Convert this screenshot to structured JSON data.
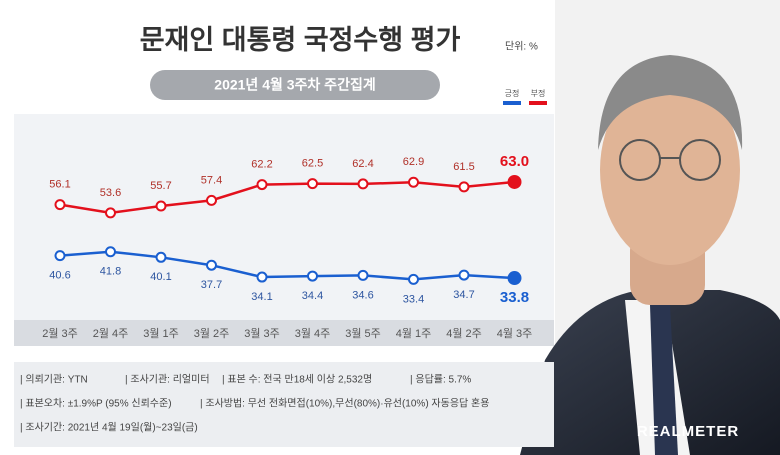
{
  "chart_data": {
    "type": "line",
    "title": "문재인 대통령 국정수행 평가",
    "unit": "단위: %",
    "subtitle": "2021년 4월 3주차 주간집계",
    "categories": [
      "2월 3주",
      "2월 4주",
      "3월 1주",
      "3월 2주",
      "3월 3주",
      "3월 4주",
      "3월 5주",
      "4월 1주",
      "4월 2주",
      "4월 3주"
    ],
    "series": [
      {
        "name": "긍정",
        "color": "#1a5fd0",
        "values": [
          40.6,
          41.8,
          40.1,
          37.7,
          34.1,
          34.4,
          34.6,
          33.4,
          34.7,
          33.8
        ],
        "value_labels": [
          "40.6",
          "41.8",
          "40.1",
          "37.7",
          "34.1",
          "34.4",
          "34.6",
          "33.4",
          "34.7",
          "33.8"
        ]
      },
      {
        "name": "부정",
        "color": "#e3101c",
        "values": [
          56.1,
          53.6,
          55.7,
          57.4,
          62.2,
          62.5,
          62.4,
          62.9,
          61.5,
          63.0
        ],
        "value_labels": [
          "56.1",
          "53.6",
          "55.7",
          "57.4",
          "62.2",
          "62.5",
          "62.4",
          "62.9",
          "61.5",
          "63.0"
        ]
      }
    ],
    "ylim": [
      25,
      80
    ],
    "grid": false
  },
  "notes": [
    [
      "| 의뢰기관: YTN",
      "| 조사기관: 리얼미터",
      "| 표본 수: 전국 만18세 이상 2,532명",
      "| 응답률: 5.7%"
    ],
    [
      "| 표본오차: ±1.9%P (95% 신뢰수준)",
      "| 조사방법: 무선 전화면접(10%),무선(80%)·유선(10%) 자동응답 혼용"
    ],
    [
      "| 조사기간: 2021년 4월 19일(월)~23일(금)"
    ]
  ],
  "logo": "REALMETER"
}
